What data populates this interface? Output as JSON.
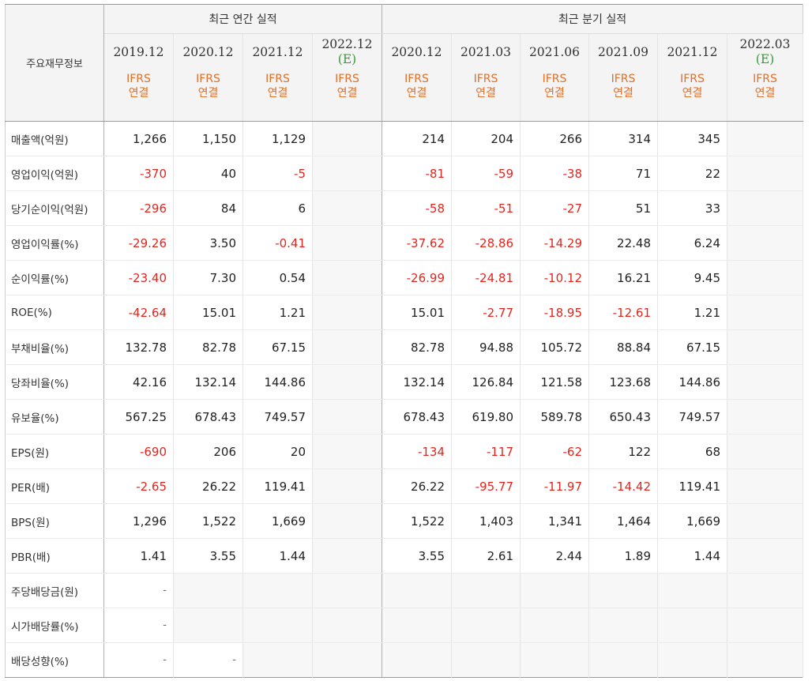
{
  "header": {
    "corner": "주요재무정보",
    "annual_group": "최근 연간 실적",
    "quarterly_group": "최근 분기 실적",
    "ifrs_line1": "IFRS",
    "ifrs_line2": "연결",
    "estimate_mark": "(E)",
    "annual_periods": [
      {
        "date": "2019.12",
        "estimate": false
      },
      {
        "date": "2020.12",
        "estimate": false
      },
      {
        "date": "2021.12",
        "estimate": false
      },
      {
        "date": "2022.12",
        "estimate": true
      }
    ],
    "quarterly_periods": [
      {
        "date": "2020.12",
        "estimate": false
      },
      {
        "date": "2021.03",
        "estimate": false
      },
      {
        "date": "2021.06",
        "estimate": false
      },
      {
        "date": "2021.09",
        "estimate": false
      },
      {
        "date": "2021.12",
        "estimate": false
      },
      {
        "date": "2022.03",
        "estimate": true
      }
    ]
  },
  "colors": {
    "negative": "#e0261e",
    "ifrs": "#e0702a",
    "estimate": "#3a9a3a"
  },
  "rows": [
    {
      "label": "매출액(억원)",
      "section_start": true,
      "annual": [
        "1,266",
        "1,150",
        "1,129",
        ""
      ],
      "quarterly": [
        "214",
        "204",
        "266",
        "314",
        "345",
        ""
      ]
    },
    {
      "label": "영업이익(억원)",
      "annual": [
        "-370",
        "40",
        "-5",
        ""
      ],
      "quarterly": [
        "-81",
        "-59",
        "-38",
        "71",
        "22",
        ""
      ]
    },
    {
      "label": "당기순이익(억원)",
      "annual": [
        "-296",
        "84",
        "6",
        ""
      ],
      "quarterly": [
        "-58",
        "-51",
        "-27",
        "51",
        "33",
        ""
      ]
    },
    {
      "label": "영업이익률(%)",
      "section_start": true,
      "annual": [
        "-29.26",
        "3.50",
        "-0.41",
        ""
      ],
      "quarterly": [
        "-37.62",
        "-28.86",
        "-14.29",
        "22.48",
        "6.24",
        ""
      ]
    },
    {
      "label": "순이익률(%)",
      "annual": [
        "-23.40",
        "7.30",
        "0.54",
        ""
      ],
      "quarterly": [
        "-26.99",
        "-24.81",
        "-10.12",
        "16.21",
        "9.45",
        ""
      ]
    },
    {
      "label": "ROE(%)",
      "annual": [
        "-42.64",
        "15.01",
        "1.21",
        ""
      ],
      "quarterly": [
        "15.01",
        "-2.77",
        "-18.95",
        "-12.61",
        "1.21",
        ""
      ]
    },
    {
      "label": "부채비율(%)",
      "section_start": true,
      "annual": [
        "132.78",
        "82.78",
        "67.15",
        ""
      ],
      "quarterly": [
        "82.78",
        "94.88",
        "105.72",
        "88.84",
        "67.15",
        ""
      ]
    },
    {
      "label": "당좌비율(%)",
      "annual": [
        "42.16",
        "132.14",
        "144.86",
        ""
      ],
      "quarterly": [
        "132.14",
        "126.84",
        "121.58",
        "123.68",
        "144.86",
        ""
      ]
    },
    {
      "label": "유보율(%)",
      "annual": [
        "567.25",
        "678.43",
        "749.57",
        ""
      ],
      "quarterly": [
        "678.43",
        "619.80",
        "589.78",
        "650.43",
        "749.57",
        ""
      ]
    },
    {
      "label": "EPS(원)",
      "section_start": true,
      "annual": [
        "-690",
        "206",
        "20",
        ""
      ],
      "quarterly": [
        "-134",
        "-117",
        "-62",
        "122",
        "68",
        ""
      ]
    },
    {
      "label": "PER(배)",
      "annual": [
        "-2.65",
        "26.22",
        "119.41",
        ""
      ],
      "quarterly": [
        "26.22",
        "-95.77",
        "-11.97",
        "-14.42",
        "119.41",
        ""
      ]
    },
    {
      "label": "BPS(원)",
      "annual": [
        "1,296",
        "1,522",
        "1,669",
        ""
      ],
      "quarterly": [
        "1,522",
        "1,403",
        "1,341",
        "1,464",
        "1,669",
        ""
      ]
    },
    {
      "label": "PBR(배)",
      "annual": [
        "1.41",
        "3.55",
        "1.44",
        ""
      ],
      "quarterly": [
        "3.55",
        "2.61",
        "2.44",
        "1.89",
        "1.44",
        ""
      ]
    },
    {
      "label": "주당배당금(원)",
      "section_start": true,
      "annual": [
        "-",
        "",
        "",
        ""
      ],
      "quarterly": [
        "",
        "",
        "",
        "",
        "",
        ""
      ]
    },
    {
      "label": "시가배당률(%)",
      "annual": [
        "-",
        "",
        "",
        ""
      ],
      "quarterly": [
        "",
        "",
        "",
        "",
        "",
        ""
      ]
    },
    {
      "label": "배당성향(%)",
      "annual": [
        "-",
        "-",
        "",
        ""
      ],
      "quarterly": [
        "",
        "",
        "",
        "",
        "",
        ""
      ]
    }
  ]
}
